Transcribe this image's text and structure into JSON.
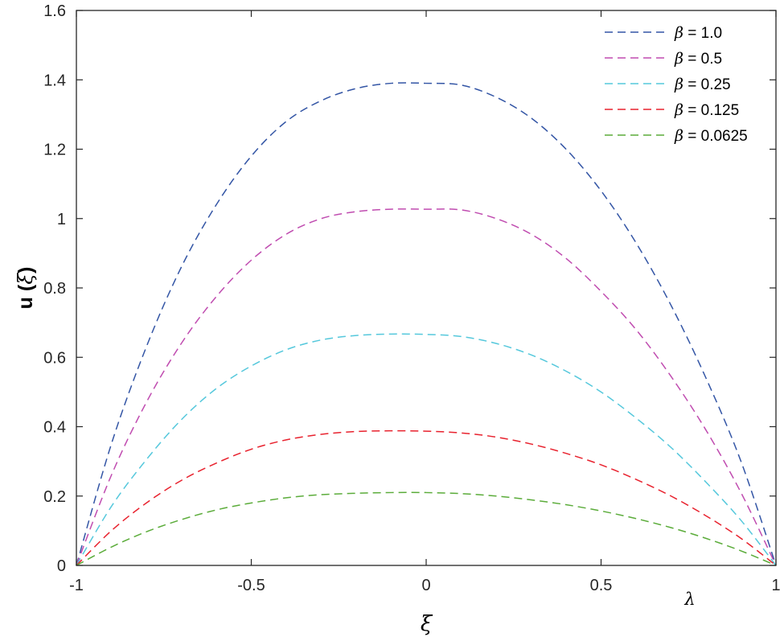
{
  "chart_data": {
    "type": "line",
    "xlabel": "ξ",
    "ylabel": {
      "prefix": "u (",
      "symbol": "ξ",
      "suffix": ")"
    },
    "annotation": "λ",
    "xlim": [
      -1,
      1
    ],
    "ylim": [
      0,
      1.6
    ],
    "xticks": [
      -1,
      -0.5,
      0,
      0.5,
      1
    ],
    "yticks": [
      0,
      0.2,
      0.4,
      0.6,
      0.8,
      1,
      1.2,
      1.4,
      1.6
    ],
    "xtick_labels": [
      "-1",
      "-0.5",
      "0",
      "0.5",
      "1"
    ],
    "ytick_labels": [
      "0",
      "0.2",
      "0.4",
      "0.6",
      "0.8",
      "1",
      "1.2",
      "1.4",
      "1.6"
    ],
    "grid": false,
    "line_style": "dashed",
    "legend_position": "top-right",
    "x": [
      -1,
      -0.9,
      -0.8,
      -0.7,
      -0.6,
      -0.5,
      -0.4,
      -0.3,
      -0.2,
      -0.1,
      0,
      0.1,
      0.2,
      0.3,
      0.4,
      0.5,
      0.6,
      0.7,
      0.8,
      0.9,
      1
    ],
    "series": [
      {
        "symbol": "β",
        "value_text": " = 1.0",
        "color": "#3355a5",
        "values": [
          0,
          0.35,
          0.63,
          0.86,
          1.04,
          1.18,
          1.28,
          1.34,
          1.375,
          1.39,
          1.39,
          1.385,
          1.35,
          1.29,
          1.2,
          1.08,
          0.93,
          0.75,
          0.54,
          0.3,
          0
        ]
      },
      {
        "symbol": "β",
        "value_text": " = 0.5",
        "color": "#c04cb0",
        "values": [
          0,
          0.26,
          0.47,
          0.64,
          0.775,
          0.88,
          0.955,
          1.0,
          1.02,
          1.027,
          1.027,
          1.025,
          1.0,
          0.955,
          0.885,
          0.79,
          0.68,
          0.545,
          0.39,
          0.21,
          0
        ]
      },
      {
        "symbol": "β",
        "value_text": " = 0.25",
        "color": "#55c8dc",
        "values": [
          0,
          0.17,
          0.305,
          0.42,
          0.51,
          0.575,
          0.622,
          0.65,
          0.663,
          0.667,
          0.666,
          0.66,
          0.64,
          0.607,
          0.56,
          0.5,
          0.425,
          0.34,
          0.24,
          0.13,
          0
        ]
      },
      {
        "symbol": "β",
        "value_text": " = 0.125",
        "color": "#e8222e",
        "values": [
          0,
          0.1,
          0.18,
          0.245,
          0.295,
          0.335,
          0.362,
          0.378,
          0.386,
          0.388,
          0.387,
          0.382,
          0.37,
          0.35,
          0.323,
          0.29,
          0.248,
          0.2,
          0.143,
          0.078,
          0
        ]
      },
      {
        "symbol": "β",
        "value_text": " = 0.0625",
        "color": "#5bac3a",
        "values": [
          0,
          0.053,
          0.097,
          0.132,
          0.16,
          0.18,
          0.195,
          0.204,
          0.208,
          0.21,
          0.21,
          0.207,
          0.2,
          0.189,
          0.175,
          0.157,
          0.135,
          0.109,
          0.078,
          0.042,
          0
        ]
      }
    ]
  }
}
